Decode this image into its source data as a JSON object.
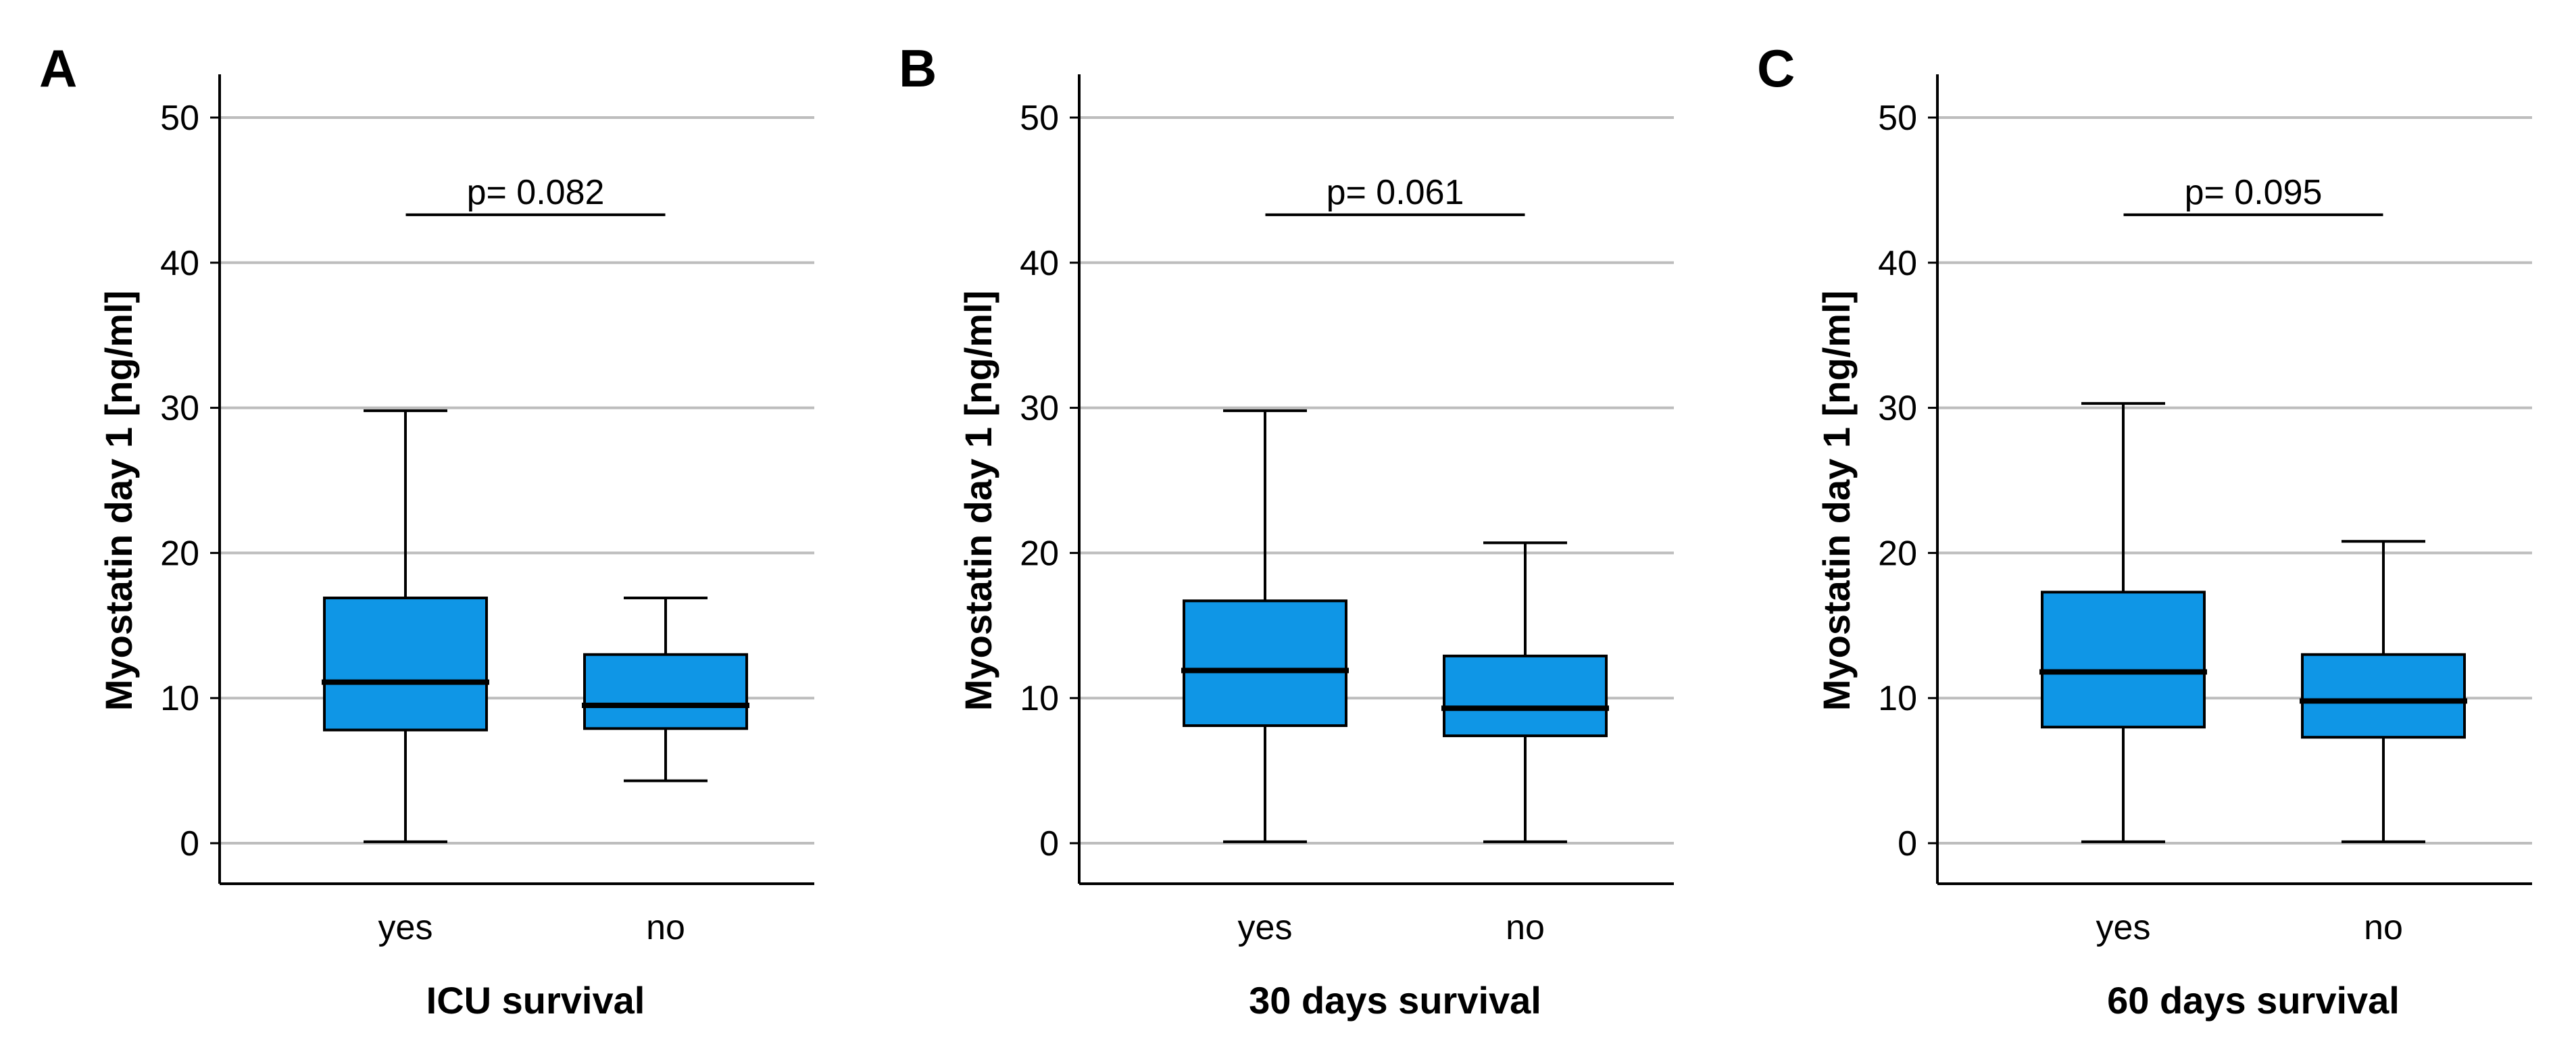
{
  "chart_data": [
    {
      "panel": "A",
      "type": "box",
      "xlabel": "ICU survival",
      "ylabel": "Myostatin day 1 [ng/ml]",
      "ylim": [
        0,
        50
      ],
      "yticks": [
        0,
        10,
        20,
        30,
        40,
        50
      ],
      "grid": true,
      "categories": [
        "yes",
        "no"
      ],
      "boxes": [
        {
          "category": "yes",
          "min": 0.1,
          "q1": 7.8,
          "median": 11.1,
          "q3": 16.9,
          "max": 29.8
        },
        {
          "category": "no",
          "min": 4.3,
          "q1": 7.9,
          "median": 9.5,
          "q3": 13.0,
          "max": 16.9
        }
      ],
      "annotation": {
        "text": "p= 0.082",
        "y": 43.3
      }
    },
    {
      "panel": "B",
      "type": "box",
      "xlabel": "30 days survival",
      "ylabel": "Myostatin day 1 [ng/ml]",
      "ylim": [
        0,
        50
      ],
      "yticks": [
        0,
        10,
        20,
        30,
        40,
        50
      ],
      "grid": true,
      "categories": [
        "yes",
        "no"
      ],
      "boxes": [
        {
          "category": "yes",
          "min": 0.1,
          "q1": 8.1,
          "median": 11.9,
          "q3": 16.7,
          "max": 29.8
        },
        {
          "category": "no",
          "min": 0.1,
          "q1": 7.4,
          "median": 9.3,
          "q3": 12.9,
          "max": 20.7
        }
      ],
      "annotation": {
        "text": "p= 0.061",
        "y": 43.3
      }
    },
    {
      "panel": "C",
      "type": "box",
      "xlabel": "60 days survival",
      "ylabel": "Myostatin day 1 [ng/ml]",
      "ylim": [
        0,
        50
      ],
      "yticks": [
        0,
        10,
        20,
        30,
        40,
        50
      ],
      "grid": true,
      "categories": [
        "yes",
        "no"
      ],
      "boxes": [
        {
          "category": "yes",
          "min": 0.1,
          "q1": 8.0,
          "median": 11.8,
          "q3": 17.3,
          "max": 30.3
        },
        {
          "category": "no",
          "min": 0.1,
          "q1": 7.3,
          "median": 9.8,
          "q3": 13.0,
          "max": 20.8
        }
      ],
      "annotation": {
        "text": "p= 0.095",
        "y": 43.3
      }
    }
  ],
  "colors": {
    "box_fill": "#0f96e6",
    "box_stroke": "#000000",
    "grid": "#bdbdbd",
    "axis": "#000000"
  }
}
